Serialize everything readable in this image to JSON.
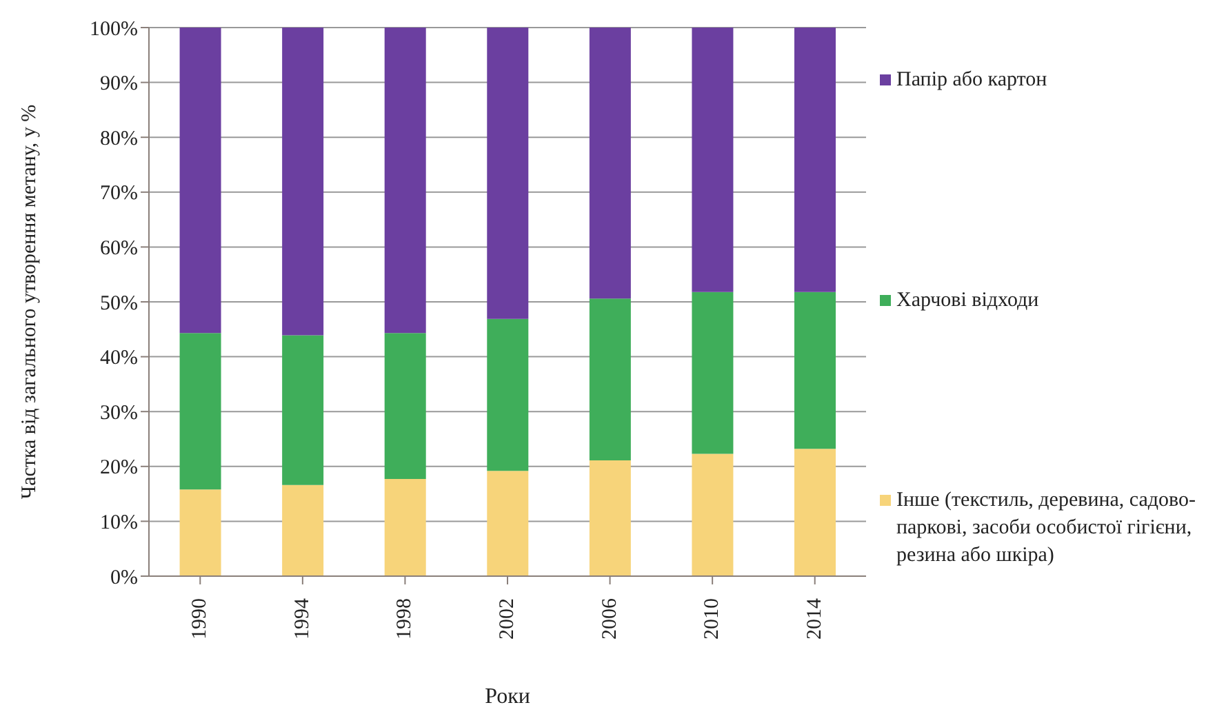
{
  "chart_data": {
    "type": "bar",
    "stacked": true,
    "xlabel": "Роки",
    "ylabel": "Частка від загального утворення метану, у %",
    "categories": [
      "1990",
      "1994",
      "1998",
      "2002",
      "2006",
      "2010",
      "2014"
    ],
    "series": [
      {
        "name": "Інше (текстиль,  деревина, садово-паркові, засоби особистої гігієни,  резина або шкіра)",
        "color": "#f7d47a",
        "values": [
          15.8,
          16.6,
          17.7,
          19.2,
          21.1,
          22.3,
          23.2
        ]
      },
      {
        "name": "Харчові відходи",
        "color": "#3fae5a",
        "values": [
          28.5,
          27.3,
          26.6,
          27.7,
          29.5,
          29.5,
          28.6
        ]
      },
      {
        "name": "Папір або картон",
        "color": "#6b3fa0",
        "values": [
          55.7,
          56.1,
          55.7,
          53.1,
          49.4,
          48.2,
          48.2
        ]
      }
    ],
    "ylim": [
      0,
      100
    ],
    "yticks": [
      {
        "value": 0,
        "label": "0%"
      },
      {
        "value": 10,
        "label": "10%"
      },
      {
        "value": 20,
        "label": "20%"
      },
      {
        "value": 30,
        "label": "30%"
      },
      {
        "value": 40,
        "label": "40%"
      },
      {
        "value": 50,
        "label": "50%"
      },
      {
        "value": 60,
        "label": "60%"
      },
      {
        "value": 70,
        "label": "70%"
      },
      {
        "value": 80,
        "label": "80%"
      },
      {
        "value": 90,
        "label": "90%"
      },
      {
        "value": 100,
        "label": "100%"
      }
    ],
    "grid": "y",
    "legend": "right"
  }
}
